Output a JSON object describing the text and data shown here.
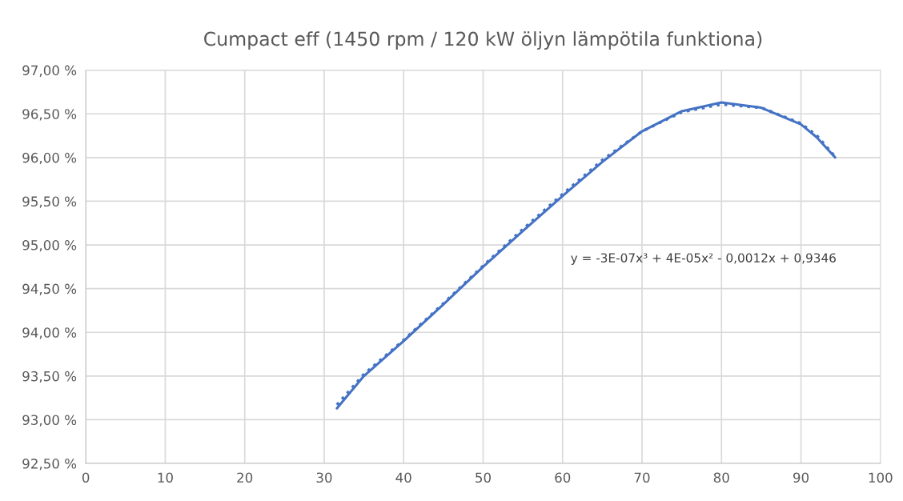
{
  "chart_data": {
    "type": "line",
    "title": "Cumpact eff (1450 rpm / 120 kW öljyn lämpötila funktiona)",
    "xlim": [
      0,
      100
    ],
    "xticks": [
      0,
      10,
      20,
      30,
      40,
      50,
      60,
      70,
      80,
      90,
      100
    ],
    "ylim": [
      92.5,
      97.0
    ],
    "yticks": [
      {
        "value": 92.5,
        "label": "92,50 %"
      },
      {
        "value": 93.0,
        "label": "93,00 %"
      },
      {
        "value": 93.5,
        "label": "93,50 %"
      },
      {
        "value": 94.0,
        "label": "94,00 %"
      },
      {
        "value": 94.5,
        "label": "94,50 %"
      },
      {
        "value": 95.0,
        "label": "95,00 %"
      },
      {
        "value": 95.5,
        "label": "95,50 %"
      },
      {
        "value": 96.0,
        "label": "96,00 %"
      },
      {
        "value": 96.5,
        "label": "96,50 %"
      },
      {
        "value": 97.0,
        "label": "97,00 %"
      }
    ],
    "grid": true,
    "series": [
      {
        "color": "#4472c4",
        "line_style": "solid",
        "x": [
          31.6,
          35,
          40,
          45,
          50,
          55,
          60,
          65,
          70,
          75,
          80,
          85,
          90,
          92,
          94.3
        ],
        "values": [
          93.13,
          93.5,
          93.9,
          94.32,
          94.75,
          95.16,
          95.56,
          95.95,
          96.3,
          96.53,
          96.63,
          96.57,
          96.38,
          96.23,
          96.0
        ]
      },
      {
        "color": "#4472c4",
        "line_style": "dotted",
        "x": [
          31.6,
          35,
          40,
          45,
          50,
          55,
          60,
          65,
          70,
          75,
          80,
          85,
          90,
          92,
          94.3
        ],
        "values": [
          93.17,
          93.52,
          93.91,
          94.33,
          94.76,
          95.18,
          95.58,
          95.97,
          96.3,
          96.52,
          96.61,
          96.57,
          96.39,
          96.25,
          96.01
        ]
      }
    ],
    "annotations": [
      "y = -3E-07x³ + 4E-05x² - 0,0012x + 0,9346"
    ]
  }
}
